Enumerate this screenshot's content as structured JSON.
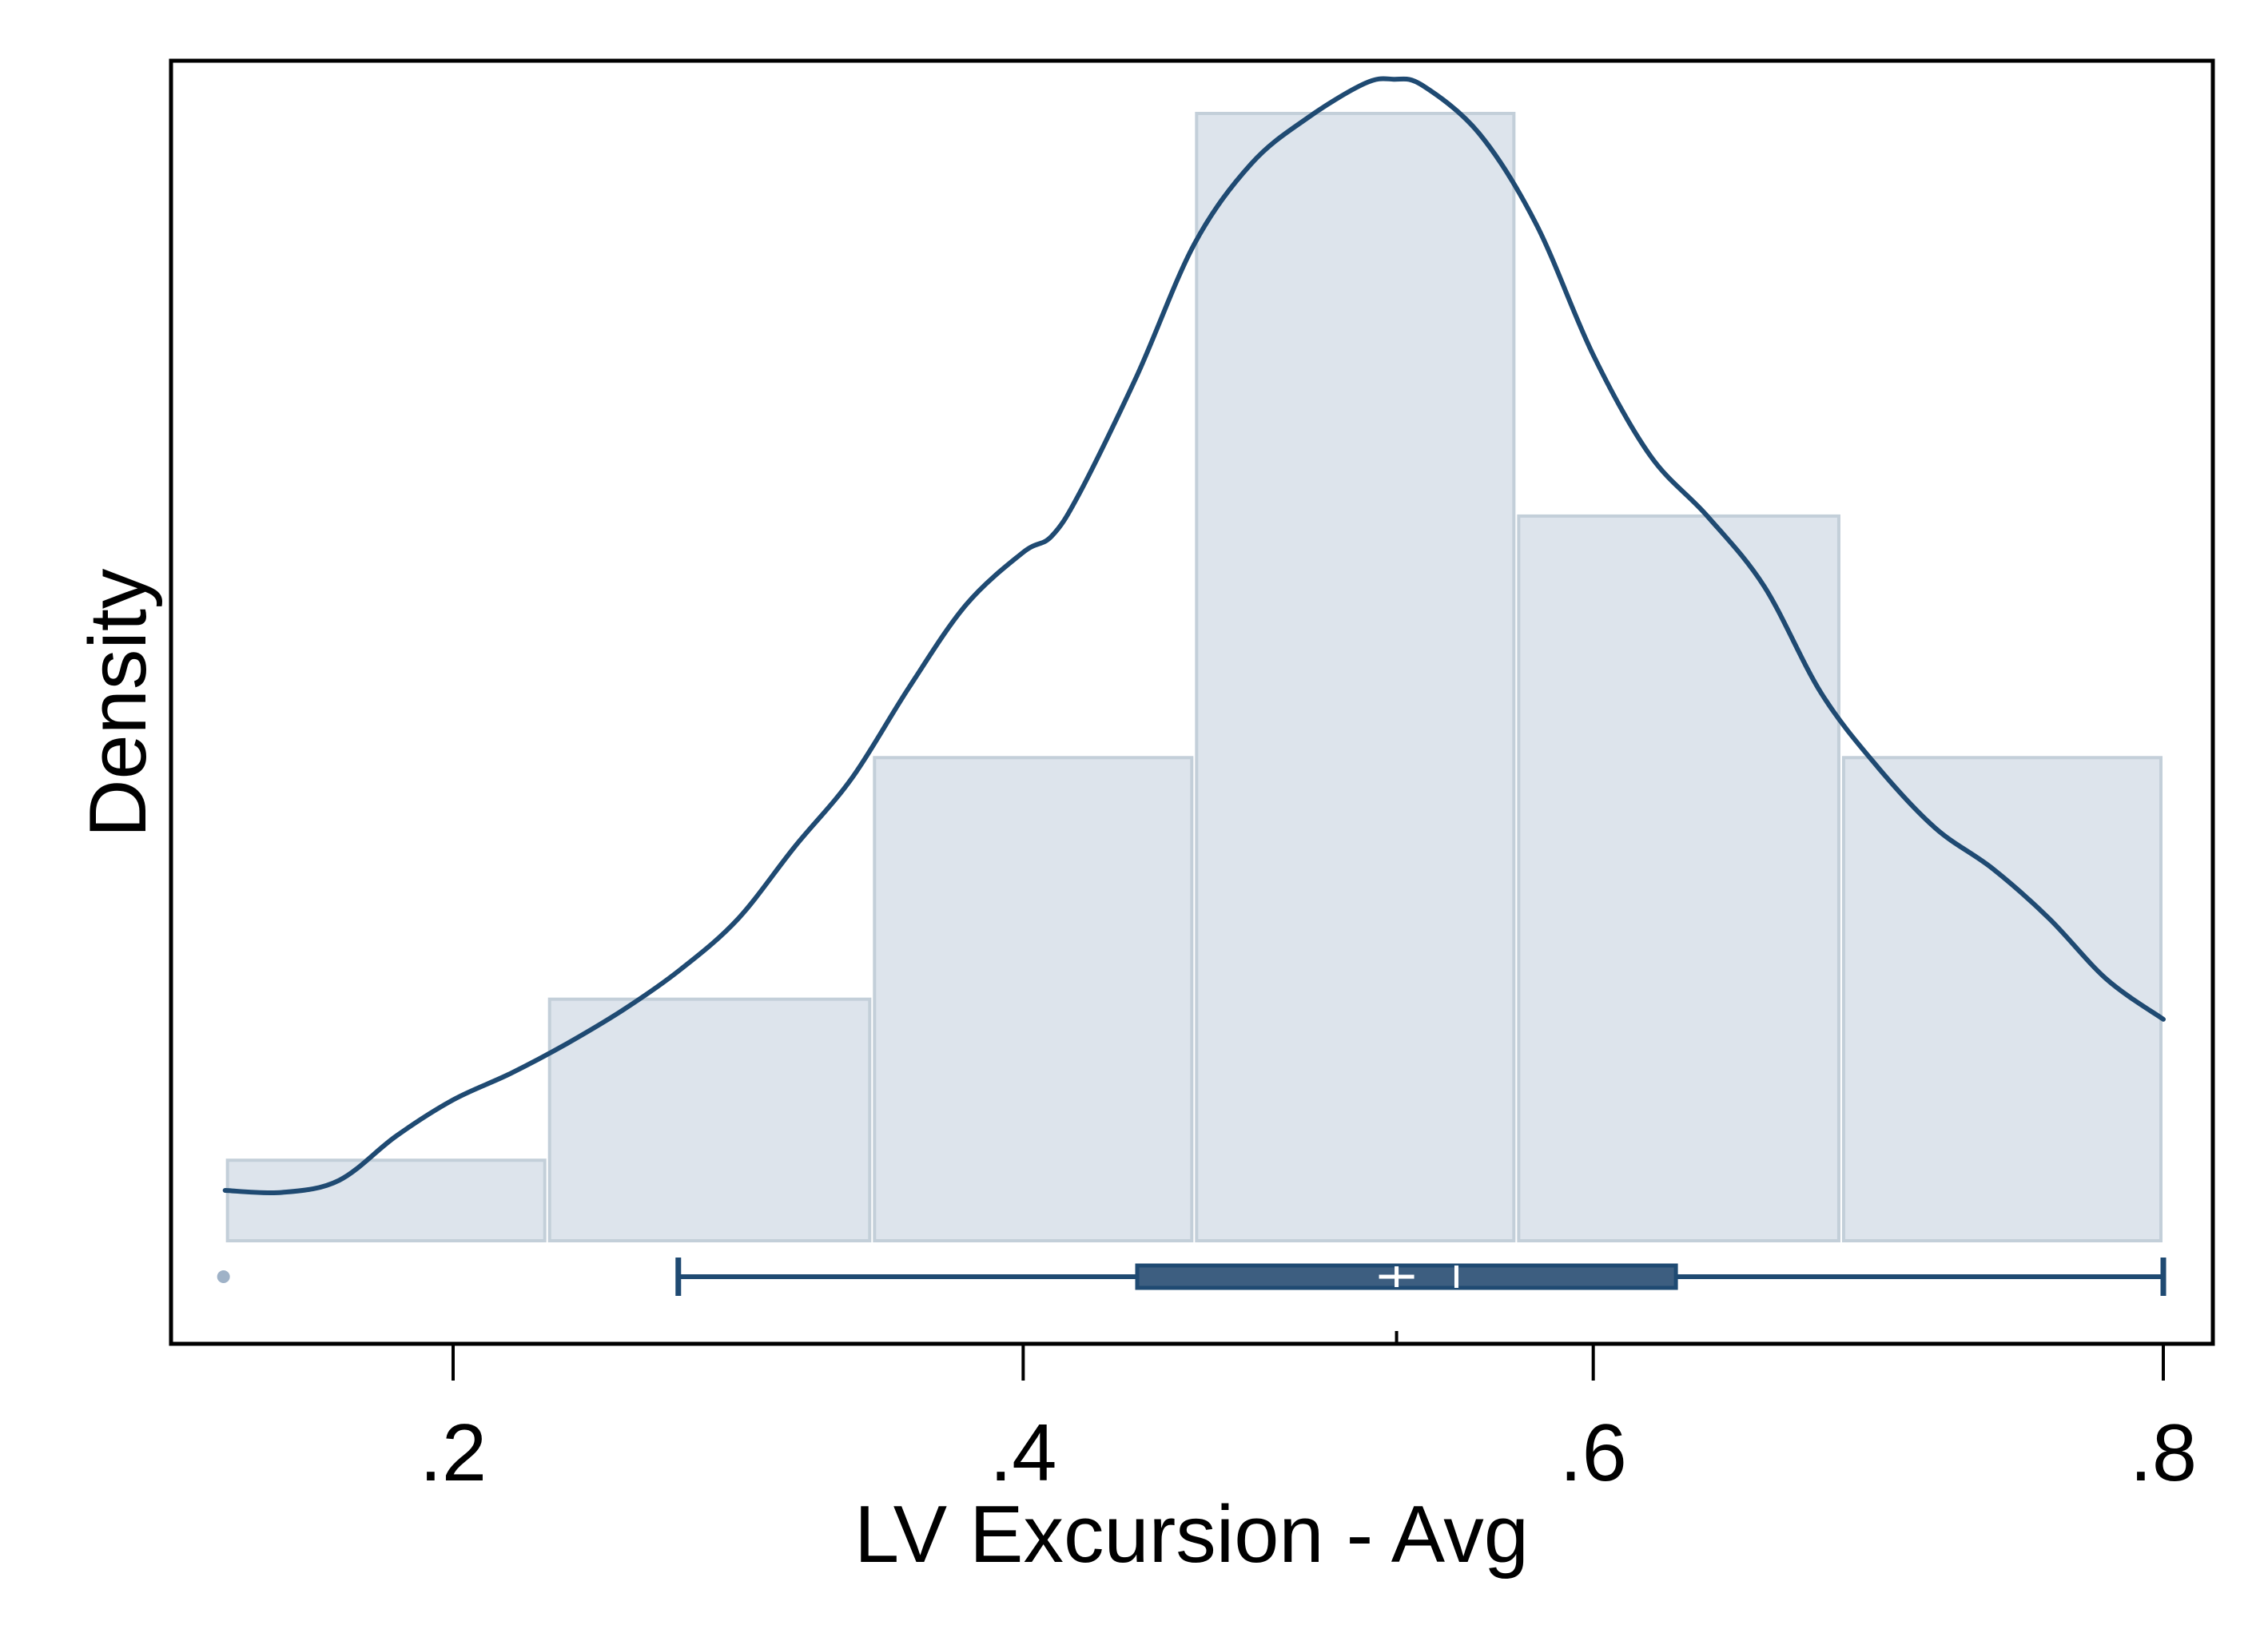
{
  "chart_data": {
    "type": "histogram",
    "xlabel": "LV Excursion - Avg",
    "ylabel": "Density",
    "xlim": [
      0.1,
      0.82
    ],
    "ylim": [
      -0.58,
      6.0
    ],
    "x_ticks": [
      {
        "value": 0.2,
        "label": ".2"
      },
      {
        "value": 0.4,
        "label": ".4"
      },
      {
        "value": 0.6,
        "label": ".6"
      },
      {
        "value": 0.8,
        "label": ".8"
      }
    ],
    "y_ticks_shown": false,
    "grid": false,
    "legend": "none",
    "histogram": {
      "bin_edges": [
        0.12,
        0.233,
        0.347,
        0.46,
        0.573,
        0.687,
        0.8
      ],
      "density": [
        0.4,
        1.2,
        2.4,
        5.6,
        3.6,
        2.4
      ]
    },
    "kde": {
      "x": [
        0.12,
        0.14,
        0.16,
        0.18,
        0.2,
        0.22,
        0.24,
        0.26,
        0.28,
        0.3,
        0.32,
        0.34,
        0.36,
        0.38,
        0.4,
        0.41,
        0.42,
        0.44,
        0.46,
        0.48,
        0.5,
        0.52,
        0.53,
        0.54,
        0.56,
        0.58,
        0.6,
        0.62,
        0.64,
        0.66,
        0.68,
        0.7,
        0.72,
        0.74,
        0.76,
        0.78,
        0.8
      ],
      "y": [
        0.25,
        0.24,
        0.3,
        0.52,
        0.7,
        0.83,
        0.98,
        1.15,
        1.35,
        1.6,
        1.96,
        2.3,
        2.75,
        3.16,
        3.42,
        3.5,
        3.72,
        4.3,
        4.95,
        5.35,
        5.58,
        5.75,
        5.77,
        5.74,
        5.5,
        5.05,
        4.4,
        3.9,
        3.6,
        3.25,
        2.72,
        2.35,
        2.05,
        1.85,
        1.6,
        1.3,
        1.1
      ]
    },
    "boxplot": {
      "whisker_low": 0.279,
      "q1": 0.44,
      "median": 0.552,
      "mean": 0.531,
      "q3": 0.629,
      "whisker_high": 0.8,
      "outliers": [
        0.12
      ],
      "mean_tick_value": 0.531
    },
    "colors": {
      "bar_fill": "#dde4ec",
      "bar_stroke": "#c3cfd9",
      "line": "#1f4a72",
      "box_fill": "#3d5e80",
      "outlier": "#9fb2c7",
      "frame": "#000000"
    }
  }
}
